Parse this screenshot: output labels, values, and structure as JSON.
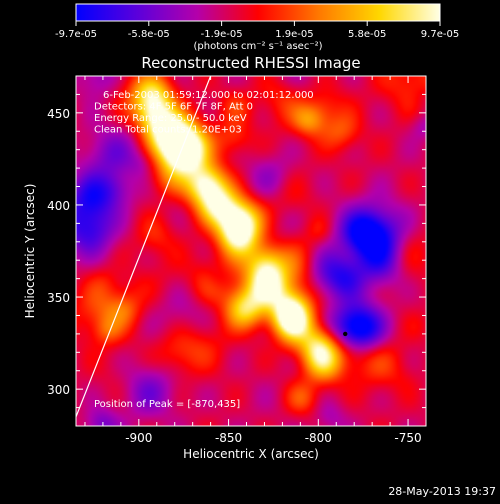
{
  "colorbar": {
    "ticks": [
      "-9.7e-05",
      "-5.8e-05",
      "-1.9e-05",
      "1.9e-05",
      "5.8e-05",
      "9.7e-05"
    ],
    "label": "(photons cm⁻² s⁻¹ asec⁻²)",
    "min": -9.7e-05,
    "max": 9.7e-05,
    "colors": [
      "#0000ff",
      "#5a00dc",
      "#b400aa",
      "#ff0000",
      "#ff7800",
      "#ffd700",
      "#ffffe6"
    ]
  },
  "chart_data": {
    "type": "heatmap",
    "title": "Reconstructed RHESSI Image",
    "xlabel": "Heliocentric X (arcsec)",
    "ylabel": "Heliocentric Y (arcsec)",
    "xlim": [
      -935,
      -740
    ],
    "ylim": [
      280,
      470
    ],
    "xticks": [
      -900,
      -850,
      -800,
      -750
    ],
    "yticks": [
      300,
      350,
      400,
      450
    ],
    "info_lines": [
      "6-Feb-2003 01:59:12.000 to 02:01:12.000",
      "Detectors: 4F 5F 6F 7F 8F, Att 0",
      "Energy Range: 25.0 - 50.0 keV",
      "Clean     Total counts: 1.20E+03"
    ],
    "peak_label": "Position of Peak = [-870,435]",
    "peak": [
      -870,
      435
    ],
    "min_marker": [
      -785,
      330
    ],
    "limb_line": [
      [
        -935,
        285
      ],
      [
        -860,
        470
      ]
    ]
  },
  "footer": {
    "timestamp": "28-May-2013 19:37"
  }
}
